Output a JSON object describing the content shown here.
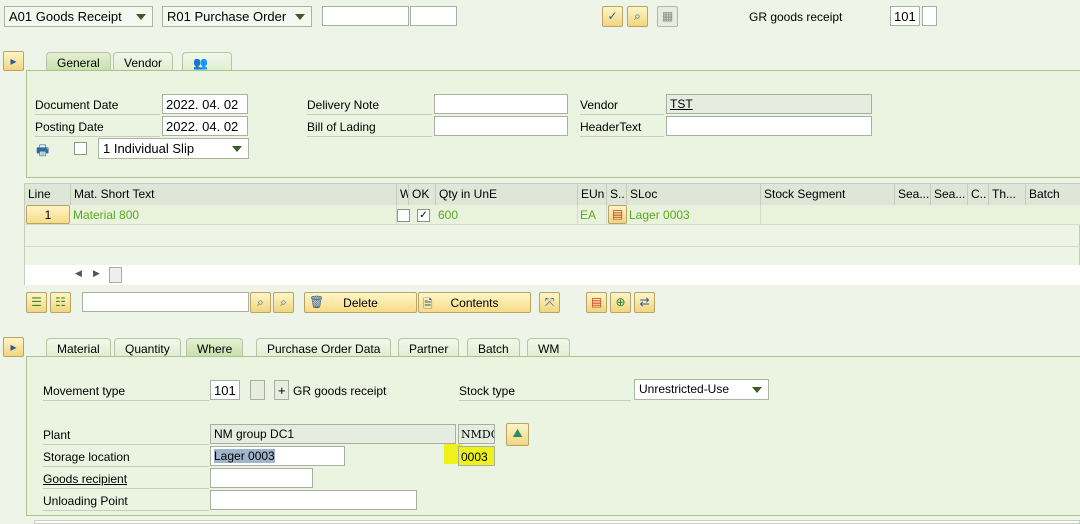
{
  "header": {
    "transaction": "A01 Goods Receipt",
    "reference": "R01 Purchase Order",
    "ref_field1": "",
    "ref_field2": "",
    "gr_label": "GR goods receipt",
    "movement_type": "101",
    "movement_extra": ""
  },
  "header_tabs": [
    {
      "label": "General"
    },
    {
      "label": "Vendor"
    },
    {
      "label": "",
      "icon": "partner-icon"
    }
  ],
  "general": {
    "document_date_label": "Document Date",
    "document_date": "2022. 04. 02",
    "posting_date_label": "Posting Date",
    "posting_date": "2022. 04. 02",
    "delivery_note_label": "Delivery Note",
    "delivery_note": "",
    "bill_of_lading_label": "Bill of Lading",
    "bill_of_lading": "",
    "vendor_label": "Vendor",
    "vendor": "TST",
    "header_text_label": "HeaderText",
    "header_text": "",
    "slip_option": "1 Individual Slip"
  },
  "items_table": {
    "columns": [
      "Line",
      "Mat. Short Text",
      "W",
      "OK",
      "Qty in UnE",
      "EUn",
      "S..",
      "SLoc",
      "Stock Segment",
      "Sea...",
      "Sea...",
      "C..",
      "Th...",
      "Batch"
    ],
    "rows": [
      {
        "line": "1",
        "text": "Material 800",
        "w": false,
        "ok": true,
        "qty": "600",
        "eun": "EA",
        "sloc": "Lager 0003"
      }
    ]
  },
  "table_toolbar": {
    "search": "",
    "delete": "Delete",
    "contents": "Contents"
  },
  "detail_tabs": [
    {
      "label": "Material"
    },
    {
      "label": "Quantity"
    },
    {
      "label": "Where",
      "active": true
    },
    {
      "label": "Purchase Order Data"
    },
    {
      "label": "Partner"
    },
    {
      "label": "Batch"
    },
    {
      "label": "WM"
    }
  ],
  "where": {
    "movement_type_label": "Movement type",
    "movement_type": "101",
    "movement_sign": "+",
    "movement_text": "GR goods receipt",
    "stock_type_label": "Stock type",
    "stock_type": "Unrestricted-Use",
    "plant_label": "Plant",
    "plant_name": "NM group DC1",
    "plant_code": "NMDC",
    "storage_location_label": "Storage location",
    "storage_location_name": "Lager 0003",
    "storage_location_code": "0003",
    "goods_recipient_label": "Goods recipient",
    "goods_recipient": "",
    "unloading_point_label": "Unloading Point",
    "unloading_point": ""
  },
  "colors": {
    "highlight": "#ecf21a",
    "material_text": "#5aa820"
  }
}
